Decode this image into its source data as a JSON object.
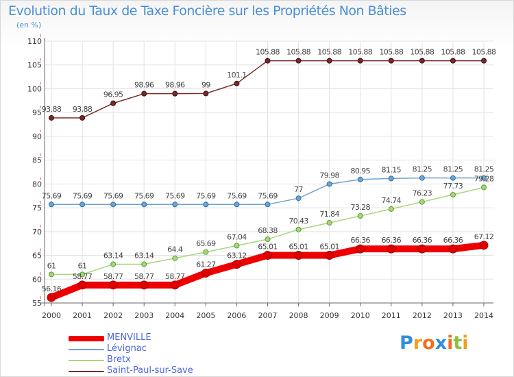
{
  "title": "Evolution du Taux de Taxe Foncière sur les Propriétés Non Bâties",
  "subtitle": "(en %)",
  "logo": {
    "letters": [
      "P",
      "r",
      "o",
      "x",
      "i",
      "t",
      "i"
    ],
    "colors": [
      "#2f8fd8",
      "#f0a020",
      "#f07020",
      "#2f8fd8",
      "#f07020",
      "#8ac040",
      "#f0a020"
    ]
  },
  "chart_data": {
    "type": "line",
    "x": [
      "2000",
      "2001",
      "2002",
      "2003",
      "2004",
      "2005",
      "2006",
      "2007",
      "2008",
      "2009",
      "2010",
      "2011",
      "2012",
      "2013",
      "2014"
    ],
    "ylim": [
      55,
      110
    ],
    "yticks": [
      "55",
      "60",
      "65",
      "70",
      "75",
      "80",
      "85",
      "90",
      "95",
      "100",
      "105",
      "110"
    ],
    "grid": true,
    "legend_placement": "bottom-left",
    "series": [
      {
        "name": "MENVILLE",
        "color": "#ee0000",
        "values": [
          56.16,
          58.77,
          58.77,
          58.77,
          58.77,
          61.27,
          63.12,
          65.01,
          65.01,
          65.01,
          66.36,
          66.36,
          66.36,
          66.36,
          67.12
        ],
        "labels": [
          "56.16",
          "58.77",
          "58.77",
          "58.77",
          "58.77",
          "61.27",
          "63.12",
          "65.01",
          "65.01",
          "65.01",
          "66.36",
          "66.36",
          "66.36",
          "66.36",
          "67.12"
        ]
      },
      {
        "name": "Lévignac",
        "color": "#6fa3d0",
        "values": [
          75.69,
          75.69,
          75.69,
          75.69,
          75.69,
          75.69,
          75.69,
          75.69,
          77,
          79.98,
          80.95,
          81.15,
          81.25,
          81.25,
          81.25
        ],
        "labels": [
          "75.69",
          "75.69",
          "75.69",
          "75.69",
          "75.69",
          "75.69",
          "75.69",
          "75.69",
          "77",
          "79.98",
          "80.95",
          "81.15",
          "81.25",
          "81.25",
          "81.25"
        ]
      },
      {
        "name": "Bretx",
        "color": "#a6d87a",
        "values": [
          61,
          61,
          63.14,
          63.14,
          64.4,
          65.69,
          67.04,
          68.38,
          70.43,
          71.84,
          73.28,
          74.74,
          76.23,
          77.73,
          79.28
        ],
        "labels": [
          "61",
          "61",
          "63.14",
          "63.14",
          "64.4",
          "65.69",
          "67.04",
          "68.38",
          "70.43",
          "71.84",
          "73.28",
          "74.74",
          "76.23",
          "77.73",
          "79.28"
        ]
      },
      {
        "name": "Saint-Paul-sur-Save",
        "color": "#7a2a2a",
        "values": [
          93.88,
          93.88,
          96.95,
          98.96,
          98.96,
          99,
          101.1,
          105.88,
          105.88,
          105.88,
          105.88,
          105.88,
          105.88,
          105.88,
          105.88
        ],
        "labels": [
          "93.88",
          "93.88",
          "96.95",
          "98.96",
          "98.96",
          "99",
          "101.1",
          "105.88",
          "105.88",
          "105.88",
          "105.88",
          "105.88",
          "105.88",
          "105.88",
          "105.88"
        ]
      }
    ]
  }
}
